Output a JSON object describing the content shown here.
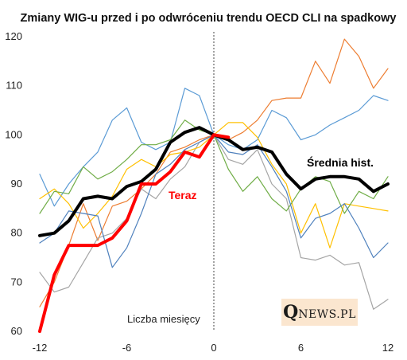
{
  "chart_data": {
    "type": "line",
    "title": "Zmiany WIG-u przed i po odwróceniu trendu OECD CLI na spadkowy",
    "xlabel": "Liczba miesięcy",
    "ylabel": "",
    "xlim": [
      -12,
      12
    ],
    "ylim": [
      60,
      120
    ],
    "x_ticks": [
      -12,
      -6,
      0,
      6,
      12
    ],
    "y_ticks": [
      60,
      70,
      80,
      90,
      100,
      110,
      120
    ],
    "grid": false,
    "vertical_marker_x": 0,
    "series": [
      {
        "color": "#5b9bd5",
        "x": [
          -12,
          -11,
          -10,
          -9,
          -8,
          -7,
          -6,
          -5,
          -4,
          -3,
          -2,
          -1,
          0,
          1,
          2,
          3,
          4,
          5,
          6,
          7,
          8,
          9,
          10,
          11,
          12
        ],
        "values": [
          92.0,
          85.5,
          90.0,
          93.5,
          96.5,
          103.0,
          105.5,
          98.5,
          97.0,
          98.5,
          109.5,
          108.0,
          100.0,
          98.0,
          97.0,
          99.0,
          105.0,
          103.5,
          99.0,
          100.0,
          102.0,
          103.5,
          105.0,
          108.0,
          107.0
        ]
      },
      {
        "color": "#ed7d31",
        "x": [
          -12,
          -11,
          -10,
          -9,
          -8,
          -7,
          -6,
          -5,
          -4,
          -3,
          -2,
          -1,
          0,
          1,
          2,
          3,
          4,
          5,
          6,
          7,
          8,
          9,
          10,
          11,
          12
        ],
        "values": [
          65.0,
          70.0,
          77.5,
          86.0,
          78.5,
          85.5,
          86.5,
          89.0,
          92.0,
          96.5,
          97.5,
          99.0,
          100.0,
          99.0,
          100.5,
          103.0,
          107.0,
          107.5,
          107.5,
          115.0,
          110.5,
          119.5,
          116.0,
          109.5,
          113.5
        ]
      },
      {
        "color": "#a5a5a5",
        "x": [
          -12,
          -11,
          -10,
          -9,
          -8,
          -7,
          -6,
          -5,
          -4,
          -3,
          -2,
          -1,
          0,
          1,
          2,
          3,
          4,
          5,
          6,
          7,
          8,
          9,
          10,
          11,
          12
        ],
        "values": [
          72.0,
          68.0,
          69.0,
          74.0,
          79.0,
          80.0,
          83.0,
          89.0,
          87.0,
          91.0,
          93.5,
          98.5,
          100.0,
          95.0,
          94.0,
          97.0,
          90.0,
          87.0,
          75.0,
          74.5,
          75.5,
          73.5,
          74.0,
          64.5,
          66.5
        ]
      },
      {
        "color": "#ffc000",
        "x": [
          -12,
          -11,
          -10,
          -9,
          -8,
          -7,
          -6,
          -5,
          -4,
          -3,
          -2,
          -1,
          0,
          1,
          2,
          3,
          4,
          5,
          6,
          7,
          8,
          9,
          10,
          11,
          12
        ],
        "values": [
          87.0,
          89.0,
          86.0,
          81.0,
          84.0,
          87.5,
          93.0,
          95.0,
          93.5,
          96.0,
          96.5,
          97.5,
          100.0,
          102.5,
          102.5,
          99.5,
          94.0,
          90.0,
          80.0,
          86.0,
          77.0,
          86.0,
          85.5,
          85.0,
          84.5
        ]
      },
      {
        "color": "#70ad47",
        "x": [
          -12,
          -11,
          -10,
          -9,
          -8,
          -7,
          -6,
          -5,
          -4,
          -3,
          -2,
          -1,
          0,
          1,
          2,
          3,
          4,
          5,
          6,
          7,
          8,
          9,
          10,
          11,
          12
        ],
        "values": [
          84.0,
          88.5,
          88.0,
          93.5,
          91.0,
          92.5,
          95.0,
          98.0,
          98.0,
          99.0,
          103.0,
          101.0,
          100.0,
          93.0,
          88.5,
          91.5,
          87.0,
          84.5,
          89.0,
          91.5,
          90.5,
          84.0,
          88.5,
          87.0,
          91.5
        ]
      },
      {
        "color": "#4f81bd",
        "x": [
          -12,
          -11,
          -10,
          -9,
          -8,
          -7,
          -6,
          -5,
          -4,
          -3,
          -2,
          -1,
          0,
          1,
          2,
          3,
          4,
          5,
          6,
          7,
          8,
          9,
          10,
          11,
          12
        ],
        "values": [
          78.0,
          80.0,
          84.5,
          84.0,
          83.5,
          73.0,
          77.0,
          84.0,
          92.0,
          94.0,
          97.0,
          98.5,
          100.0,
          96.5,
          96.0,
          98.0,
          93.5,
          88.5,
          79.0,
          83.0,
          84.0,
          86.0,
          81.0,
          75.0,
          78.0
        ]
      },
      {
        "name": "Średnia hist.",
        "color": "#000000",
        "x": [
          -12,
          -11,
          -10,
          -9,
          -8,
          -7,
          -6,
          -5,
          -4,
          -3,
          -2,
          -1,
          0,
          1,
          2,
          3,
          4,
          5,
          6,
          7,
          8,
          9,
          10,
          11,
          12
        ],
        "values": [
          79.5,
          80.0,
          82.5,
          87.0,
          87.5,
          87.0,
          89.5,
          90.5,
          93.0,
          98.5,
          100.5,
          101.5,
          100.0,
          99.0,
          97.0,
          97.5,
          96.5,
          92.0,
          89.0,
          91.0,
          91.5,
          91.5,
          91.0,
          88.5,
          90.0
        ]
      },
      {
        "name": "Teraz",
        "color": "#ff0000",
        "x": [
          -12,
          -11,
          -10,
          -9,
          -8,
          -7,
          -6,
          -5,
          -4,
          -3,
          -2,
          -1,
          0,
          1
        ],
        "values": [
          60.0,
          71.5,
          77.5,
          77.5,
          77.5,
          79.0,
          82.5,
          90.0,
          90.0,
          92.5,
          96.5,
          95.5,
          100.0,
          99.5
        ]
      }
    ],
    "annotations": [
      {
        "text": "Teraz",
        "color": "#ff0000"
      },
      {
        "text": "Średnia hist.",
        "color": "#000000"
      }
    ]
  },
  "logo": {
    "q": "Q",
    "rest": "NEWS.PL"
  }
}
